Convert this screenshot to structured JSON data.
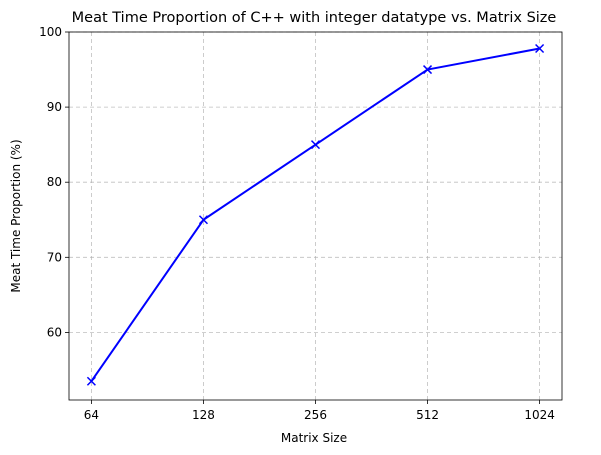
{
  "chart_data": {
    "type": "line",
    "title": "Meat Time Proportion of C++ with integer datatype vs. Matrix Size",
    "xlabel": "Matrix Size",
    "ylabel": "Meat Time Proportion (%)",
    "categories": [
      "64",
      "128",
      "256",
      "512",
      "1024"
    ],
    "x_scale": "log2",
    "ylim": [
      51,
      100
    ],
    "yticks": [
      60,
      70,
      80,
      90,
      100
    ],
    "grid": true,
    "series": [
      {
        "values": [
          53.5,
          75.0,
          85.0,
          95.0,
          97.8
        ],
        "color": "#0000ff",
        "marker": "x"
      }
    ]
  }
}
